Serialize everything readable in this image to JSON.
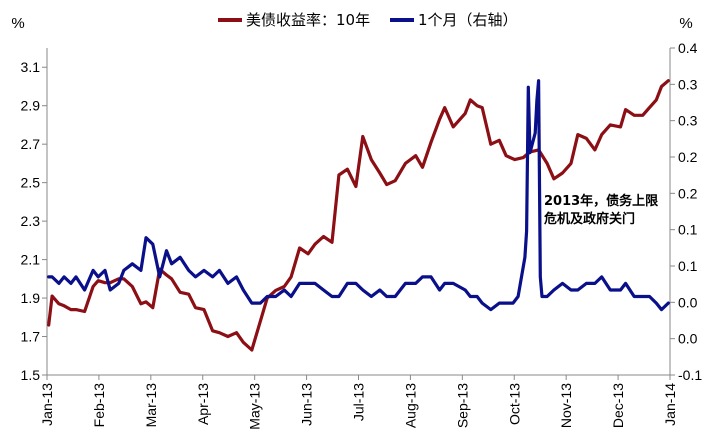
{
  "chart_data": {
    "type": "line",
    "y_unit_left": "%",
    "y_unit_right": "%",
    "x_ticks": [
      "Jan-13",
      "Feb-13",
      "Mar-13",
      "Apr-13",
      "May-13",
      "Jun-13",
      "Jul-13",
      "Aug-13",
      "Sep-13",
      "Oct-13",
      "Nov-13",
      "Dec-13",
      "Jan-14"
    ],
    "y_left": {
      "range": [
        1.5,
        3.2
      ],
      "ticks": [
        "1.5",
        "1.7",
        "1.9",
        "2.1",
        "2.3",
        "2.5",
        "2.7",
        "2.9",
        "3.1"
      ]
    },
    "y_right": {
      "range": [
        -0.1,
        0.4
      ],
      "ticks": [
        "-0.1",
        "0.0",
        "0.0",
        "0.1",
        "0.1",
        "0.2",
        "0.2",
        "0.3",
        "0.3",
        "0.4"
      ]
    },
    "annotation": [
      "2013年，债务上限",
      "危机及政府关门"
    ],
    "series": [
      {
        "name": "美债收益率：10年",
        "axis": "left",
        "color": "#8b0f14",
        "x": [
          "2013-01-02",
          "2013-01-04",
          "2013-01-08",
          "2013-01-11",
          "2013-01-15",
          "2013-01-18",
          "2013-01-23",
          "2013-01-28",
          "2013-01-31",
          "2013-02-04",
          "2013-02-07",
          "2013-02-12",
          "2013-02-15",
          "2013-02-20",
          "2013-02-25",
          "2013-02-28",
          "2013-03-04",
          "2013-03-08",
          "2013-03-12",
          "2013-03-15",
          "2013-03-20",
          "2013-03-25",
          "2013-03-29",
          "2013-04-03",
          "2013-04-08",
          "2013-04-12",
          "2013-04-17",
          "2013-04-22",
          "2013-04-26",
          "2013-05-01",
          "2013-05-06",
          "2013-05-10",
          "2013-05-15",
          "2013-05-20",
          "2013-05-24",
          "2013-05-29",
          "2013-06-03",
          "2013-06-07",
          "2013-06-12",
          "2013-06-17",
          "2013-06-21",
          "2013-06-26",
          "2013-07-01",
          "2013-07-05",
          "2013-07-10",
          "2013-07-15",
          "2013-07-19",
          "2013-07-24",
          "2013-07-30",
          "2013-08-05",
          "2013-08-09",
          "2013-08-14",
          "2013-08-19",
          "2013-08-22",
          "2013-08-27",
          "2013-09-03",
          "2013-09-06",
          "2013-09-10",
          "2013-09-13",
          "2013-09-18",
          "2013-09-23",
          "2013-09-27",
          "2013-10-02",
          "2013-10-07",
          "2013-10-11",
          "2013-10-16",
          "2013-10-21",
          "2013-10-25",
          "2013-10-30",
          "2013-11-04",
          "2013-11-08",
          "2013-11-13",
          "2013-11-18",
          "2013-11-22",
          "2013-11-27",
          "2013-12-03",
          "2013-12-06",
          "2013-12-11",
          "2013-12-16",
          "2013-12-20",
          "2013-12-24",
          "2013-12-27",
          "2013-12-31"
        ],
        "values": [
          1.76,
          1.91,
          1.87,
          1.86,
          1.84,
          1.84,
          1.83,
          1.96,
          1.99,
          1.98,
          1.98,
          2.0,
          2.0,
          1.96,
          1.87,
          1.88,
          1.85,
          2.05,
          2.02,
          2.0,
          1.93,
          1.92,
          1.85,
          1.84,
          1.73,
          1.72,
          1.7,
          1.72,
          1.67,
          1.63,
          1.78,
          1.9,
          1.94,
          1.96,
          2.01,
          2.16,
          2.13,
          2.18,
          2.22,
          2.19,
          2.54,
          2.57,
          2.48,
          2.74,
          2.62,
          2.55,
          2.49,
          2.51,
          2.6,
          2.64,
          2.58,
          2.71,
          2.83,
          2.89,
          2.79,
          2.86,
          2.93,
          2.9,
          2.89,
          2.7,
          2.72,
          2.64,
          2.62,
          2.63,
          2.66,
          2.67,
          2.6,
          2.52,
          2.55,
          2.6,
          2.75,
          2.73,
          2.67,
          2.75,
          2.8,
          2.79,
          2.88,
          2.85,
          2.85,
          2.89,
          2.93,
          3.0,
          3.03
        ]
      },
      {
        "name": "1个月（右轴）",
        "axis": "right",
        "color": "#0a0f8a",
        "x": [
          "2013-01-02",
          "2013-01-04",
          "2013-01-08",
          "2013-01-11",
          "2013-01-15",
          "2013-01-18",
          "2013-01-23",
          "2013-01-28",
          "2013-01-31",
          "2013-02-04",
          "2013-02-07",
          "2013-02-12",
          "2013-02-15",
          "2013-02-20",
          "2013-02-25",
          "2013-02-28",
          "2013-03-04",
          "2013-03-08",
          "2013-03-12",
          "2013-03-15",
          "2013-03-20",
          "2013-03-25",
          "2013-03-29",
          "2013-04-03",
          "2013-04-08",
          "2013-04-12",
          "2013-04-17",
          "2013-04-22",
          "2013-04-26",
          "2013-05-01",
          "2013-05-06",
          "2013-05-10",
          "2013-05-15",
          "2013-05-20",
          "2013-05-24",
          "2013-05-29",
          "2013-06-03",
          "2013-06-07",
          "2013-06-12",
          "2013-06-17",
          "2013-06-21",
          "2013-06-26",
          "2013-07-01",
          "2013-07-05",
          "2013-07-10",
          "2013-07-15",
          "2013-07-19",
          "2013-07-24",
          "2013-07-30",
          "2013-08-05",
          "2013-08-09",
          "2013-08-14",
          "2013-08-19",
          "2013-08-22",
          "2013-08-27",
          "2013-09-03",
          "2013-09-06",
          "2013-09-10",
          "2013-09-13",
          "2013-09-18",
          "2013-09-23",
          "2013-09-27",
          "2013-10-01",
          "2013-10-04",
          "2013-10-08",
          "2013-10-09",
          "2013-10-10",
          "2013-10-11",
          "2013-10-14",
          "2013-10-15",
          "2013-10-16",
          "2013-10-17",
          "2013-10-18",
          "2013-10-21",
          "2013-10-25",
          "2013-10-30",
          "2013-11-04",
          "2013-11-08",
          "2013-11-13",
          "2013-11-18",
          "2013-11-22",
          "2013-11-27",
          "2013-12-03",
          "2013-12-06",
          "2013-12-11",
          "2013-12-16",
          "2013-12-20",
          "2013-12-24",
          "2013-12-27",
          "2013-12-31"
        ],
        "values": [
          0.05,
          0.05,
          0.04,
          0.05,
          0.04,
          0.05,
          0.03,
          0.06,
          0.05,
          0.06,
          0.03,
          0.04,
          0.06,
          0.07,
          0.06,
          0.11,
          0.1,
          0.05,
          0.09,
          0.07,
          0.08,
          0.06,
          0.05,
          0.06,
          0.05,
          0.06,
          0.04,
          0.05,
          0.03,
          0.01,
          0.01,
          0.02,
          0.02,
          0.03,
          0.02,
          0.04,
          0.04,
          0.04,
          0.03,
          0.02,
          0.02,
          0.04,
          0.04,
          0.03,
          0.02,
          0.03,
          0.02,
          0.02,
          0.04,
          0.04,
          0.05,
          0.05,
          0.03,
          0.04,
          0.04,
          0.03,
          0.02,
          0.02,
          0.01,
          0.0,
          0.01,
          0.01,
          0.01,
          0.02,
          0.08,
          0.12,
          0.34,
          0.24,
          0.27,
          0.32,
          0.35,
          0.05,
          0.02,
          0.02,
          0.03,
          0.04,
          0.03,
          0.03,
          0.04,
          0.04,
          0.05,
          0.03,
          0.03,
          0.04,
          0.02,
          0.02,
          0.02,
          0.01,
          0.0,
          0.01
        ]
      }
    ]
  }
}
